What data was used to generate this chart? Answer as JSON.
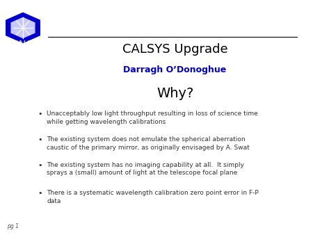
{
  "title": "CALSYS Upgrade",
  "subtitle": "Darragh O’Donoghue",
  "section_title": "Why?",
  "bullets": [
    "Unacceptably low light throughput resulting in loss of science time\nwhile getting wavelength calibrations",
    "The existing system does not emulate the spherical aberration\ncaustic of the primary mirror, as originally envisaged by A. Swat",
    "The existing system has no imaging capability at all.  It simply\nsprays a (small) amount of light at the telescope focal plane",
    "There is a systematic wavelength calibration zero point error in F-P\ndata"
  ],
  "page_label": "pg 1",
  "bg_color": "#ffffff",
  "title_color": "#000000",
  "subtitle_color": "#0000cc",
  "section_color": "#000000",
  "bullet_color": "#333333",
  "line_color": "#000000",
  "logo_hex_color": "#0000cc",
  "logo_inner_color": "#ffffff"
}
